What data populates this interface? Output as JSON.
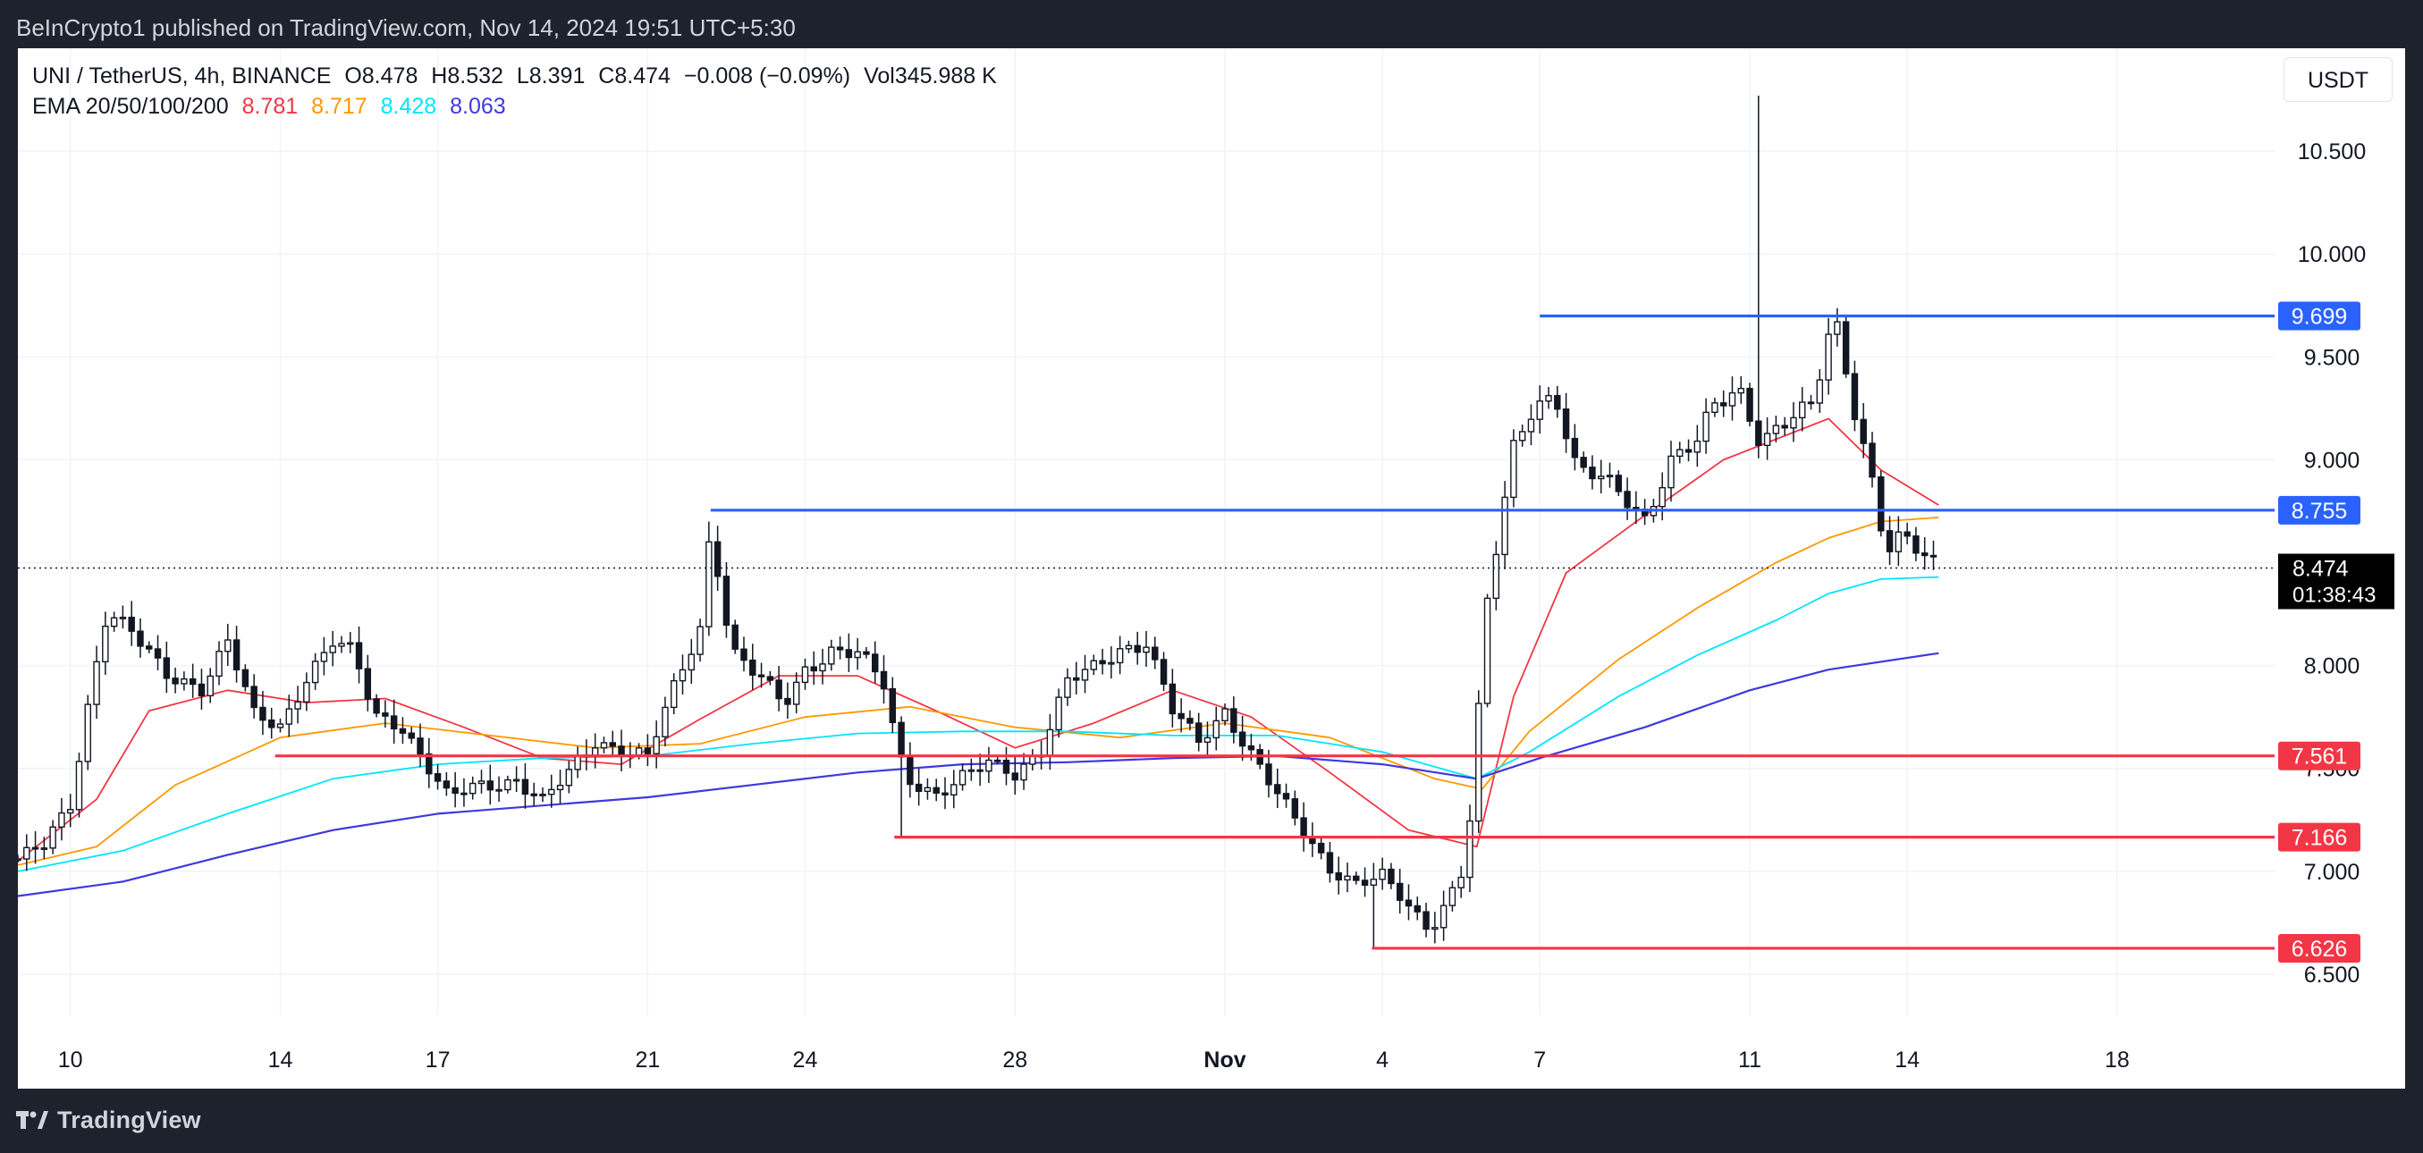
{
  "header": {
    "publisher_line": "BeInCrypto1 published on TradingView.com, Nov 14, 2024 19:51 UTC+5:30"
  },
  "legend": {
    "symbol": "UNI / TetherUS, 4h, BINANCE",
    "open_label": "O",
    "open": "8.478",
    "high_label": "H",
    "high": "8.532",
    "low_label": "L",
    "low": "8.391",
    "close_label": "C",
    "close": "8.474",
    "change": "−0.008 (−0.09%)",
    "volume_label": "Vol",
    "volume": "345.988 K",
    "ema_label": "EMA 20/50/100/200",
    "ema20": "8.781",
    "ema50": "8.717",
    "ema100": "8.428",
    "ema200": "8.063"
  },
  "toolbar": {
    "currency": "USDT"
  },
  "footer": {
    "brand": "TradingView"
  },
  "colors": {
    "background": "#1e222d",
    "chart_bg": "#ffffff",
    "ema20": "#f23645",
    "ema50": "#ff9800",
    "ema100": "#00e5ff",
    "ema200": "#3f38e0",
    "resistance": "#2962ff",
    "support": "#f23645",
    "candle": "#131722"
  },
  "chart_data": {
    "type": "candlestick",
    "yaxis": {
      "ticks": [
        "6.500",
        "7.000",
        "7.500",
        "8.000",
        "8.500",
        "9.000",
        "9.500",
        "10.000",
        "10.500"
      ],
      "range": [
        6.3,
        11.0
      ]
    },
    "xaxis": {
      "ticks": [
        "10",
        "14",
        "17",
        "21",
        "24",
        "28",
        "Nov",
        "4",
        "7",
        "11",
        "14",
        "18"
      ],
      "tick_days": [
        10,
        14,
        17,
        21,
        24,
        28,
        32,
        35,
        38,
        42,
        45,
        49
      ],
      "range_days": [
        9.0,
        52.0
      ]
    },
    "last_price": {
      "value": 8.474,
      "label": "8.474",
      "countdown": "01:38:43"
    },
    "resistance_levels": [
      {
        "value": 9.699,
        "label": "9.699",
        "from_day": 38.0
      },
      {
        "value": 8.755,
        "label": "8.755",
        "from_day": 22.2
      }
    ],
    "support_levels": [
      {
        "value": 7.561,
        "label": "7.561",
        "from_day": 13.9
      },
      {
        "value": 7.166,
        "label": "7.166",
        "from_day": 25.7
      },
      {
        "value": 6.626,
        "label": "6.626",
        "from_day": 34.8
      }
    ],
    "candle_anchors": {
      "days": [
        9.0,
        9.5,
        10.0,
        10.4,
        10.7,
        11.2,
        11.8,
        12.5,
        13.0,
        13.5,
        14.0,
        14.5,
        15.0,
        15.4,
        15.8,
        16.3,
        16.8,
        17.2,
        17.6,
        18.0,
        18.5,
        19.0,
        19.5,
        20.0,
        20.5,
        21.0,
        21.5,
        22.0,
        22.2,
        22.6,
        23.2,
        23.6,
        24.0,
        24.5,
        25.0,
        25.5,
        25.8,
        26.0,
        26.5,
        27.0,
        27.5,
        28.0,
        28.5,
        29.0,
        29.5,
        30.0,
        30.5,
        31.0,
        31.5,
        32.0,
        32.5,
        33.0,
        33.5,
        34.0,
        34.5,
        35.0,
        35.5,
        35.9,
        36.2,
        36.6,
        37.0,
        37.5,
        37.9,
        38.3,
        38.7,
        39.2,
        39.6,
        40.0,
        40.5,
        41.0,
        41.3,
        41.8,
        42.2,
        42.8,
        43.2,
        43.6,
        44.0,
        44.3,
        44.6,
        44.9,
        45.2,
        45.6
      ],
      "closes": [
        7.06,
        7.12,
        7.32,
        7.9,
        8.28,
        8.15,
        7.95,
        7.9,
        8.12,
        7.75,
        7.7,
        7.95,
        8.12,
        8.05,
        7.75,
        7.72,
        7.52,
        7.35,
        7.4,
        7.42,
        7.45,
        7.34,
        7.47,
        7.63,
        7.6,
        7.56,
        7.88,
        8.18,
        8.68,
        8.08,
        7.92,
        7.8,
        7.98,
        8.08,
        8.06,
        7.9,
        7.55,
        7.45,
        7.38,
        7.45,
        7.52,
        7.48,
        7.6,
        7.92,
        7.98,
        8.08,
        8.12,
        7.78,
        7.62,
        7.78,
        7.58,
        7.37,
        7.18,
        7.02,
        6.95,
        6.97,
        6.82,
        6.72,
        6.85,
        7.05,
        8.3,
        9.05,
        9.28,
        9.32,
        8.95,
        8.9,
        8.82,
        8.72,
        9.0,
        9.08,
        9.25,
        9.35,
        9.1,
        9.2,
        9.25,
        9.72,
        9.25,
        8.95,
        8.55,
        8.62,
        8.55,
        8.474
      ]
    },
    "ema_series": [
      {
        "name": "EMA 20",
        "days": [
          9.0,
          10.5,
          11.5,
          13.0,
          14.5,
          16.0,
          17.5,
          19.0,
          20.5,
          22.0,
          23.5,
          25.0,
          26.5,
          28.0,
          29.5,
          31.0,
          32.5,
          34.0,
          35.5,
          36.8,
          37.5,
          38.5,
          40.0,
          41.5,
          42.5,
          43.5,
          44.5,
          45.6
        ],
        "values": [
          7.05,
          7.35,
          7.78,
          7.88,
          7.82,
          7.84,
          7.7,
          7.55,
          7.52,
          7.74,
          7.95,
          7.95,
          7.78,
          7.6,
          7.72,
          7.88,
          7.75,
          7.48,
          7.2,
          7.12,
          7.85,
          8.45,
          8.73,
          9.0,
          9.1,
          9.2,
          8.95,
          8.78
        ]
      },
      {
        "name": "EMA 50",
        "days": [
          9.0,
          10.5,
          12.0,
          14.0,
          16.0,
          18.0,
          20.0,
          22.0,
          24.0,
          26.0,
          28.0,
          30.0,
          32.0,
          34.0,
          36.0,
          36.9,
          37.8,
          39.5,
          41.0,
          42.5,
          43.5,
          44.5,
          45.6
        ],
        "values": [
          7.03,
          7.12,
          7.42,
          7.65,
          7.72,
          7.66,
          7.6,
          7.62,
          7.75,
          7.8,
          7.7,
          7.65,
          7.72,
          7.65,
          7.45,
          7.4,
          7.68,
          8.03,
          8.28,
          8.5,
          8.62,
          8.7,
          8.72
        ]
      },
      {
        "name": "EMA 100",
        "days": [
          9.0,
          11.0,
          13.0,
          15.0,
          17.0,
          19.0,
          21.0,
          23.0,
          25.0,
          27.0,
          29.0,
          31.0,
          33.0,
          35.0,
          36.8,
          37.8,
          39.5,
          41.0,
          42.5,
          43.5,
          44.5,
          45.6
        ],
        "values": [
          7.0,
          7.1,
          7.28,
          7.45,
          7.52,
          7.55,
          7.56,
          7.62,
          7.67,
          7.68,
          7.68,
          7.66,
          7.66,
          7.58,
          7.45,
          7.58,
          7.85,
          8.05,
          8.22,
          8.35,
          8.42,
          8.43
        ]
      },
      {
        "name": "EMA 200",
        "days": [
          9.0,
          11.0,
          13.0,
          15.0,
          17.0,
          19.0,
          21.0,
          23.0,
          25.0,
          27.0,
          29.0,
          31.0,
          33.0,
          35.0,
          36.8,
          38.0,
          40.0,
          42.0,
          43.5,
          45.6
        ],
        "values": [
          6.88,
          6.95,
          7.08,
          7.2,
          7.28,
          7.32,
          7.36,
          7.42,
          7.48,
          7.52,
          7.53,
          7.55,
          7.56,
          7.52,
          7.45,
          7.55,
          7.7,
          7.88,
          7.98,
          8.06
        ]
      }
    ]
  }
}
